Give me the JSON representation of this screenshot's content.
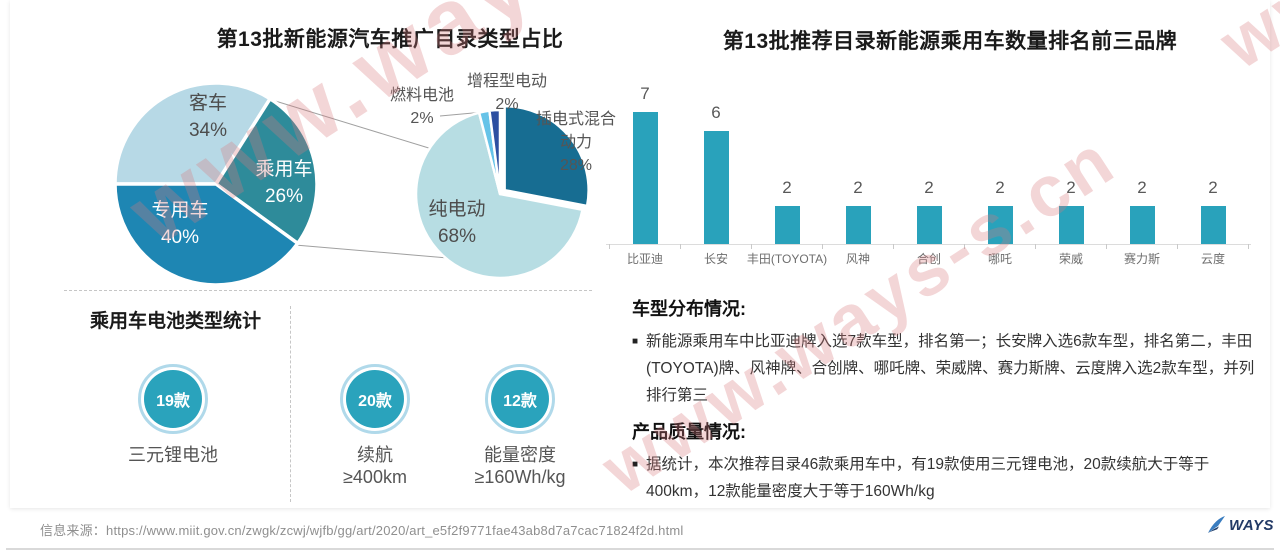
{
  "page": {
    "watermark_text": "www.ways-s.cn",
    "footer": {
      "source_label": "信息来源：",
      "source_url": "https://www.miit.gov.cn/zwgk/zcwj/wjfb/gg/art/2020/art_e5f2f9771fae43ab8d7a7cac71824f2d.html",
      "brand": "WAYS"
    }
  },
  "chart_data": [
    {
      "type": "pie",
      "title": "第13批新能源汽车推广目录类型占比",
      "labels": [
        "客车",
        "乘用车",
        "专用车"
      ],
      "values": [
        34,
        26,
        40
      ],
      "unit": "%",
      "colors": [
        "#b7d9e6",
        "#2e8b9a",
        "#1e86b3"
      ],
      "start_angle_deg": 270,
      "legend_position": "none"
    },
    {
      "type": "pie",
      "title": "",
      "labels": [
        "插电式混合动力",
        "纯电动",
        "燃料电池",
        "增程型电动"
      ],
      "values": [
        28,
        68,
        2,
        2
      ],
      "unit": "%",
      "colors": [
        "#176d92",
        "#b7dde3",
        "#66c3e8",
        "#2d4fa1"
      ],
      "start_angle_deg": 0,
      "exploded_slice": "插电式混合动力",
      "legend_position": "none"
    },
    {
      "type": "bar",
      "title": "第13批推荐目录新能源乘用车数量排名前三品牌",
      "categories": [
        "比亚迪",
        "长安",
        "丰田(TOYOTA)",
        "风神",
        "合创",
        "哪吒",
        "荣威",
        "赛力斯",
        "云度"
      ],
      "values": [
        7,
        6,
        2,
        2,
        2,
        2,
        2,
        2,
        2
      ],
      "bar_color": "#29a2bb",
      "xlabel": "",
      "ylabel": "",
      "ylim": [
        0,
        7.5
      ],
      "grid": false,
      "value_labels": true
    }
  ],
  "battery_stats": {
    "title": "乘用车电池类型统计",
    "circle_color": "#2aa3bc",
    "items": [
      {
        "value": "19款",
        "label_lines": [
          "三元锂电池"
        ]
      },
      {
        "value": "20款",
        "label_lines": [
          "续航",
          "≥400km"
        ]
      },
      {
        "value": "12款",
        "label_lines": [
          "能量密度",
          "≥160Wh/kg"
        ]
      }
    ]
  },
  "insights": {
    "sections": [
      {
        "heading": "车型分布情况:",
        "bullets": [
          "新能源乘用车中比亚迪牌入选7款车型，排名第一；长安牌入选6款车型，排名第二，丰田(TOYOTA)牌、风神牌、合创牌、哪吒牌、荣威牌、赛力斯牌、云度牌入选2款车型，并列排行第三"
        ]
      },
      {
        "heading": "产品质量情况:",
        "bullets": [
          "据统计，本次推荐目录46款乘用车中，有19款使用三元锂电池，20款续航大于等于400km，12款能量密度大于等于160Wh/kg"
        ]
      }
    ]
  }
}
